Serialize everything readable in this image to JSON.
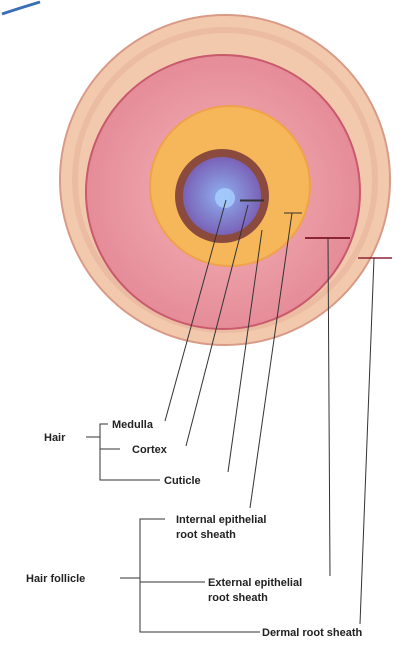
{
  "labels": {
    "hair": "Hair",
    "medulla": "Medulla",
    "cortex": "Cortex",
    "cuticle": "Cuticle",
    "hair_follicle": "Hair follicle",
    "internal": [
      "Internal epithelial",
      "root sheath"
    ],
    "external": [
      "External epithelial",
      "root sheath"
    ],
    "dermal": "Dermal root sheath"
  }
}
